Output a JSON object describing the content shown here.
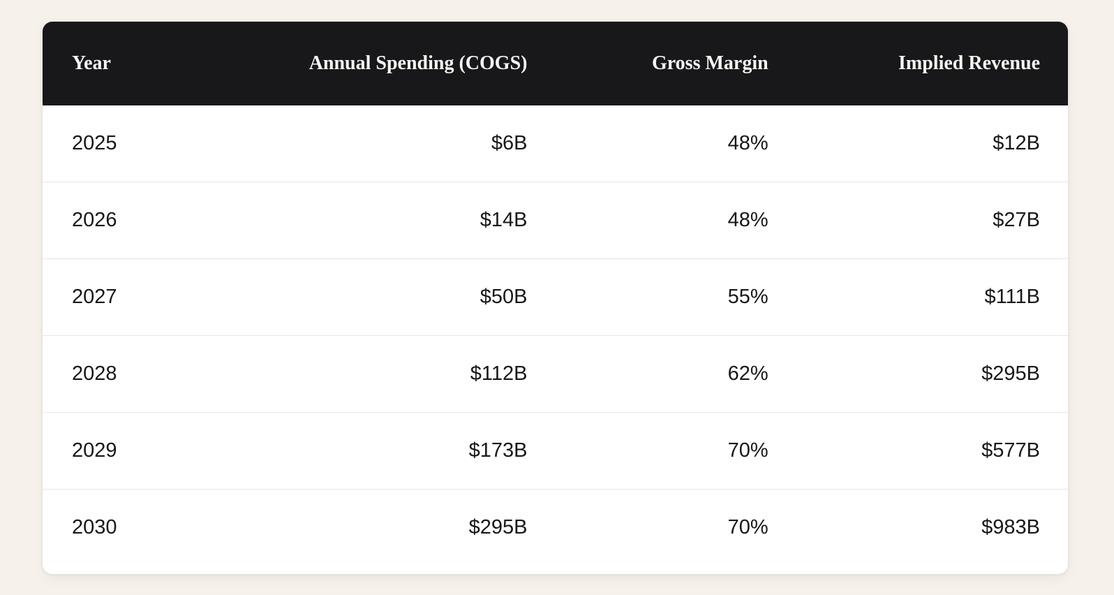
{
  "page": {
    "background_color": "#f6f1eb",
    "card_background": "#ffffff"
  },
  "table": {
    "header_bg": "#18181b",
    "header_text_color": "#f8f5f0",
    "body_text_color": "#18181b",
    "divider_color": "#e8e6e2",
    "columns": [
      {
        "label": "Year",
        "align": "left"
      },
      {
        "label": "Annual Spending (COGS)",
        "align": "right"
      },
      {
        "label": "Gross Margin",
        "align": "right"
      },
      {
        "label": "Implied Revenue",
        "align": "right"
      }
    ],
    "rows": [
      [
        "2025",
        "$6B",
        "48%",
        "$12B"
      ],
      [
        "2026",
        "$14B",
        "48%",
        "$27B"
      ],
      [
        "2027",
        "$50B",
        "55%",
        "$111B"
      ],
      [
        "2028",
        "$112B",
        "62%",
        "$295B"
      ],
      [
        "2029",
        "$173B",
        "70%",
        "$577B"
      ],
      [
        "2030",
        "$295B",
        "70%",
        "$983B"
      ]
    ]
  },
  "chart_data": {
    "type": "table",
    "columns": [
      "Year",
      "Annual Spending (COGS)",
      "Gross Margin",
      "Implied Revenue"
    ],
    "rows": [
      {
        "year": 2025,
        "annual_spending_cogs_usd_b": 6,
        "gross_margin_pct": 48,
        "implied_revenue_usd_b": 12
      },
      {
        "year": 2026,
        "annual_spending_cogs_usd_b": 14,
        "gross_margin_pct": 48,
        "implied_revenue_usd_b": 27
      },
      {
        "year": 2027,
        "annual_spending_cogs_usd_b": 50,
        "gross_margin_pct": 55,
        "implied_revenue_usd_b": 111
      },
      {
        "year": 2028,
        "annual_spending_cogs_usd_b": 112,
        "gross_margin_pct": 62,
        "implied_revenue_usd_b": 295
      },
      {
        "year": 2029,
        "annual_spending_cogs_usd_b": 173,
        "gross_margin_pct": 70,
        "implied_revenue_usd_b": 577
      },
      {
        "year": 2030,
        "annual_spending_cogs_usd_b": 295,
        "gross_margin_pct": 70,
        "implied_revenue_usd_b": 983
      }
    ],
    "title": "",
    "legend": false,
    "grid": "horizontal-row-dividers"
  }
}
